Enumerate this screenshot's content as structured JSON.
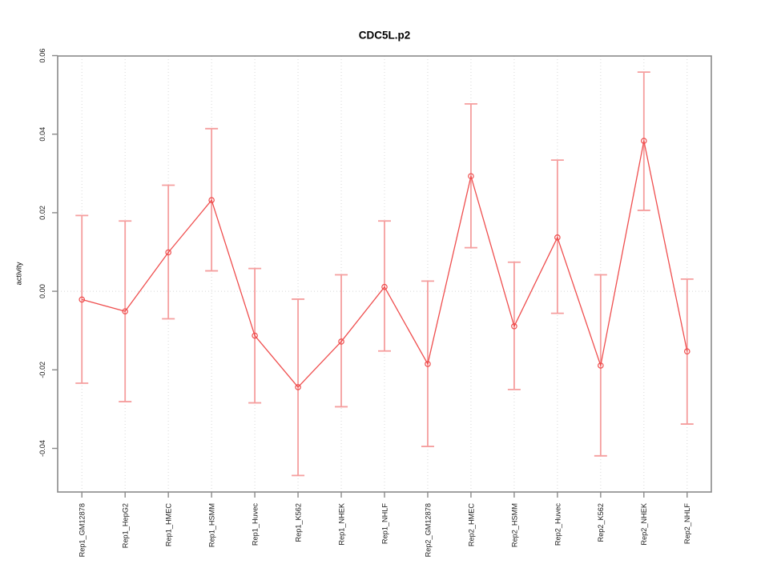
{
  "chart_data": {
    "type": "line",
    "title": "CDC5L.p2",
    "xlabel": "",
    "ylabel": "activity",
    "categories": [
      "Rep1_GM12878",
      "Rep1_HepG2",
      "Rep1_HMEC",
      "Rep1_HSMM",
      "Rep1_Huvec",
      "Rep1_K562",
      "Rep1_NHEK",
      "Rep1_NHLF",
      "Rep2_GM12878",
      "Rep2_HMEC",
      "Rep2_HSMM",
      "Rep2_Huvec",
      "Rep2_K562",
      "Rep2_NHEK",
      "Rep2_NHLF"
    ],
    "series": [
      {
        "name": "activity",
        "values": [
          -0.0021,
          -0.0051,
          0.0099,
          0.0232,
          -0.0113,
          -0.0244,
          -0.0128,
          0.0011,
          -0.0185,
          0.0293,
          -0.0089,
          0.0137,
          -0.0189,
          0.0383,
          -0.0153
        ],
        "err_high": [
          0.0193,
          0.0179,
          0.027,
          0.0414,
          0.0058,
          -0.002,
          0.0042,
          0.0179,
          0.0026,
          0.0477,
          0.0074,
          0.0334,
          0.0042,
          0.0558,
          0.0031
        ],
        "err_low": [
          -0.0234,
          -0.0281,
          -0.007,
          0.0052,
          -0.0284,
          -0.0469,
          -0.0294,
          -0.0152,
          -0.0395,
          0.0111,
          -0.025,
          -0.0056,
          -0.0419,
          0.0206,
          -0.0338
        ]
      }
    ],
    "yticks": [
      -0.04,
      -0.02,
      0,
      0.02,
      0.04,
      0.06
    ],
    "ytick_labels": [
      "-0.04",
      "-0.02",
      "0.00",
      "0.02",
      "0.04",
      "0.06"
    ],
    "ylim": [
      -0.0511,
      0.0599
    ],
    "xlim": [
      0.44,
      15.56
    ],
    "reference_line_y": 0,
    "grid": "vertical-dotted-per-category",
    "legend_position": "none",
    "marker": "open-circle",
    "colors": {
      "line": "#ef4e4e",
      "error_bar": "#f59e9e",
      "grid": "#d8d8d8",
      "frame": "#8a8a8a",
      "text": "#1c1c1c",
      "background": "#ffffff"
    }
  }
}
